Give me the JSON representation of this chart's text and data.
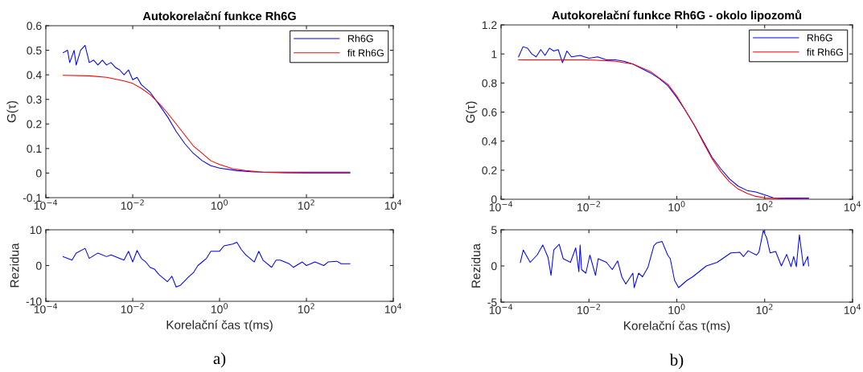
{
  "chart_data": [
    {
      "type": "line",
      "title": "Autokorelační funkce Rh6G",
      "ylabel": "G(τ)",
      "log": "x",
      "legend": "top right",
      "xlim": [
        0.0001,
        10000
      ],
      "ylim": [
        -0.1,
        0.6
      ],
      "xticks": [
        {
          "value": 0.0001,
          "label": "10$^{−4}$"
        },
        {
          "value": 0.01,
          "label": "10$^{−2}$"
        },
        {
          "value": 1,
          "label": "10$^{0}$"
        },
        {
          "value": 100,
          "label": "10$^{2}$"
        },
        {
          "value": 10000,
          "label": "10$^{4}$"
        }
      ],
      "yticks": [
        -0.1,
        0,
        0.1,
        0.2,
        0.3,
        0.4,
        0.5,
        0.6
      ],
      "series": [
        {
          "name": "Rh6G",
          "color": "#0000ff",
          "x": [
            0.00025,
            0.000316,
            0.000355,
            0.000447,
            0.0005,
            0.00063,
            0.0008,
            0.001,
            0.00126,
            0.00158,
            0.002,
            0.0025,
            0.00316,
            0.004,
            0.005,
            0.0063,
            0.008,
            0.01,
            0.0126,
            0.0158,
            0.025,
            0.04,
            0.063,
            0.1,
            0.158,
            0.25,
            0.4,
            0.63,
            1,
            2.5,
            6.3,
            31.6,
            100,
            1000
          ],
          "values": [
            0.49,
            0.5,
            0.45,
            0.5,
            0.44,
            0.5,
            0.52,
            0.45,
            0.46,
            0.44,
            0.46,
            0.44,
            0.45,
            0.43,
            0.42,
            0.4,
            0.42,
            0.38,
            0.39,
            0.36,
            0.33,
            0.28,
            0.23,
            0.17,
            0.12,
            0.08,
            0.05,
            0.03,
            0.02,
            0.01,
            0.005,
            0.004,
            0.004,
            0.004
          ]
        },
        {
          "name": "fit Rh6G",
          "color": "#ff0000",
          "x": [
            0.00025,
            0.001,
            0.0025,
            0.0063,
            0.01,
            0.0158,
            0.025,
            0.04,
            0.063,
            0.1,
            0.158,
            0.25,
            0.4,
            0.63,
            1,
            2,
            4,
            10,
            31.6,
            100,
            1000
          ],
          "values": [
            0.398,
            0.396,
            0.39,
            0.375,
            0.365,
            0.345,
            0.32,
            0.285,
            0.245,
            0.2,
            0.155,
            0.11,
            0.08,
            0.05,
            0.035,
            0.018,
            0.01,
            0.004,
            0.001,
            0,
            0
          ]
        }
      ]
    },
    {
      "type": "line",
      "title": "Autokorelační funkce Rh6G - okolo lipozomů",
      "ylabel": "G(τ)",
      "log": "x",
      "legend": "top right",
      "xlim": [
        0.0001,
        10000
      ],
      "ylim": [
        0,
        1.2
      ],
      "xticks": [
        {
          "value": 0.0001,
          "label": "10$^{−4}$"
        },
        {
          "value": 0.01,
          "label": "10$^{−2}$"
        },
        {
          "value": 1,
          "label": "10$^{0}$"
        },
        {
          "value": 100,
          "label": "10$^{2}$"
        },
        {
          "value": 10000,
          "label": "10$^{4}$"
        }
      ],
      "yticks": [
        0,
        0.2,
        0.4,
        0.6,
        0.8,
        1,
        1.2
      ],
      "series": [
        {
          "name": "Rh6G",
          "color": "#0000ff",
          "x": [
            0.00025,
            0.000316,
            0.0004,
            0.0005,
            0.00063,
            0.0008,
            0.001,
            0.00126,
            0.00158,
            0.002,
            0.0025,
            0.00316,
            0.004,
            0.0063,
            0.01,
            0.0158,
            0.025,
            0.04,
            0.063,
            0.1,
            0.158,
            0.25,
            0.4,
            0.63,
            1,
            1.58,
            2.5,
            4,
            6.3,
            10,
            15.8,
            25,
            40,
            63,
            100,
            158,
            316,
            1000
          ],
          "values": [
            0.98,
            1.05,
            1.04,
            1.0,
            0.98,
            1.03,
            0.99,
            1.04,
            1.02,
            1.03,
            0.94,
            1.02,
            0.98,
            0.99,
            0.97,
            0.98,
            0.96,
            0.96,
            0.95,
            0.93,
            0.9,
            0.87,
            0.83,
            0.78,
            0.7,
            0.61,
            0.51,
            0.4,
            0.29,
            0.21,
            0.14,
            0.09,
            0.06,
            0.05,
            0.03,
            0.01,
            0.008,
            0.008
          ]
        },
        {
          "name": "fit Rh6G",
          "color": "#ff0000",
          "x": [
            0.00025,
            0.01,
            0.04,
            0.1,
            0.25,
            0.63,
            1,
            1.58,
            2.5,
            4,
            6.3,
            10,
            15.8,
            25,
            40,
            63,
            100,
            250,
            1000
          ],
          "values": [
            0.96,
            0.96,
            0.95,
            0.93,
            0.88,
            0.79,
            0.71,
            0.61,
            0.51,
            0.39,
            0.28,
            0.19,
            0.12,
            0.07,
            0.04,
            0.02,
            0.01,
            0.003,
            0
          ]
        }
      ]
    },
    {
      "type": "line",
      "ylabel": "Rezidua",
      "xlabel": "Korelační čas τ(ms)",
      "log": "x",
      "xlim": [
        0.0001,
        10000
      ],
      "ylim": [
        -10,
        10
      ],
      "xticks": [
        {
          "value": 0.0001,
          "label": "10$^{−4}$"
        },
        {
          "value": 0.01,
          "label": "10$^{−2}$"
        },
        {
          "value": 1,
          "label": "10$^{0}$"
        },
        {
          "value": 100,
          "label": "10$^{2}$"
        },
        {
          "value": 10000,
          "label": "10$^{4}$"
        }
      ],
      "yticks": [
        -10,
        0,
        10
      ],
      "annotations": [
        "a)"
      ],
      "series": [
        {
          "color": "#0000ff",
          "x": [
            0.00025,
            0.0004,
            0.0005,
            0.0008,
            0.001,
            0.00158,
            0.0025,
            0.00316,
            0.0063,
            0.008,
            0.01,
            0.0126,
            0.0158,
            0.02,
            0.025,
            0.0316,
            0.04,
            0.063,
            0.08,
            0.1,
            0.126,
            0.2,
            0.25,
            0.316,
            0.5,
            0.63,
            1,
            1.26,
            2,
            2.5,
            3.16,
            4,
            6.3,
            8,
            10,
            15.8,
            20,
            25,
            40,
            50,
            80,
            100,
            158,
            250,
            316,
            500,
            630,
            1000
          ],
          "values": [
            2.5,
            1.5,
            3.5,
            4.8,
            2,
            3.5,
            2.5,
            3,
            1.5,
            4,
            1,
            4.2,
            2,
            1,
            -0.5,
            -1,
            -2.5,
            -4.5,
            -3,
            -6,
            -5.5,
            -3,
            -2,
            0,
            2,
            4,
            4,
            5.5,
            6,
            6.5,
            4.5,
            3,
            1,
            4,
            1.5,
            -0.5,
            1.5,
            1.5,
            0.5,
            -0.5,
            1,
            0,
            1,
            0,
            1,
            1.2,
            0.5,
            0.5
          ]
        }
      ]
    },
    {
      "type": "line",
      "ylabel": "Rezidua",
      "xlabel": "Korelační čas τ(ms)",
      "log": "x",
      "xlim": [
        0.0001,
        10000
      ],
      "ylim": [
        -5,
        5
      ],
      "xticks": [
        {
          "value": 0.0001,
          "label": "10$^{−4}$"
        },
        {
          "value": 0.01,
          "label": "10$^{−2}$"
        },
        {
          "value": 1,
          "label": "10$^{0}$"
        },
        {
          "value": 100,
          "label": "10$^{2}$"
        },
        {
          "value": 10000,
          "label": "10$^{4}$"
        }
      ],
      "yticks": [
        -5,
        0,
        5
      ],
      "annotations": [
        "b)"
      ],
      "series": [
        {
          "color": "#0000ff",
          "x": [
            0.000275,
            0.00032,
            0.00046,
            0.00066,
            0.00089,
            0.00117,
            0.00137,
            0.00158,
            0.0021,
            0.0026,
            0.0038,
            0.005,
            0.0059,
            0.0063,
            0.0068,
            0.0085,
            0.0105,
            0.0141,
            0.0162,
            0.025,
            0.034,
            0.045,
            0.056,
            0.069,
            0.1,
            0.107,
            0.135,
            0.166,
            0.22,
            0.3,
            0.35,
            0.46,
            0.62,
            0.71,
            0.89,
            1.1,
            1.7,
            2.3,
            4.7,
            8.3,
            17,
            27,
            33,
            42,
            65,
            74,
            93,
            112,
            133,
            178,
            240,
            316,
            398,
            457,
            525,
            617,
            759,
            955,
            1000
          ],
          "values": [
            0.5,
            2.2,
            0.5,
            1.5,
            2.9,
            1.2,
            -1.3,
            2.2,
            3,
            1,
            0.5,
            2.5,
            -0.8,
            2.9,
            -0.5,
            -1,
            1.5,
            -1.3,
            1,
            0.5,
            -0.5,
            0.7,
            -1.5,
            -2.5,
            -1,
            -3,
            -1,
            -1.5,
            -0.2,
            2.8,
            3.2,
            3.4,
            1.5,
            1,
            -2,
            -3,
            -2,
            -1.5,
            0,
            0.5,
            1.8,
            1.9,
            1.3,
            2.1,
            1.5,
            1.9,
            4.9,
            3.8,
            1.8,
            2,
            0,
            1.6,
            -0.1,
            1.3,
            -0.1,
            4.3,
            0,
            1.3,
            0
          ]
        }
      ]
    }
  ]
}
